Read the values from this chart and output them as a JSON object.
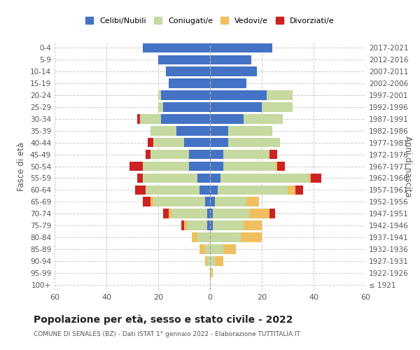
{
  "age_groups": [
    "100+",
    "95-99",
    "90-94",
    "85-89",
    "80-84",
    "75-79",
    "70-74",
    "65-69",
    "60-64",
    "55-59",
    "50-54",
    "45-49",
    "40-44",
    "35-39",
    "30-34",
    "25-29",
    "20-24",
    "15-19",
    "10-14",
    "5-9",
    "0-4"
  ],
  "birth_years": [
    "≤ 1921",
    "1922-1926",
    "1927-1931",
    "1932-1936",
    "1937-1941",
    "1942-1946",
    "1947-1951",
    "1952-1956",
    "1957-1961",
    "1962-1966",
    "1967-1971",
    "1972-1976",
    "1977-1981",
    "1982-1986",
    "1987-1991",
    "1992-1996",
    "1997-2001",
    "2002-2006",
    "2007-2011",
    "2012-2016",
    "2017-2021"
  ],
  "male": {
    "celibi": [
      0,
      0,
      0,
      0,
      0,
      1,
      1,
      2,
      4,
      5,
      8,
      8,
      10,
      13,
      19,
      18,
      19,
      16,
      17,
      20,
      26
    ],
    "coniugati": [
      0,
      0,
      1,
      2,
      5,
      8,
      14,
      20,
      21,
      21,
      18,
      15,
      12,
      10,
      8,
      2,
      1,
      0,
      0,
      0,
      0
    ],
    "vedovi": [
      0,
      0,
      1,
      2,
      2,
      1,
      1,
      1,
      0,
      0,
      0,
      0,
      0,
      0,
      0,
      0,
      0,
      0,
      0,
      0,
      0
    ],
    "divorziati": [
      0,
      0,
      0,
      0,
      0,
      1,
      2,
      3,
      4,
      2,
      5,
      2,
      2,
      0,
      1,
      0,
      0,
      0,
      0,
      0,
      0
    ]
  },
  "female": {
    "nubili": [
      0,
      0,
      0,
      0,
      0,
      1,
      1,
      2,
      3,
      4,
      5,
      5,
      7,
      7,
      13,
      20,
      22,
      14,
      18,
      16,
      24
    ],
    "coniugate": [
      0,
      0,
      2,
      5,
      12,
      12,
      14,
      12,
      27,
      34,
      20,
      18,
      20,
      17,
      15,
      12,
      10,
      0,
      0,
      0,
      0
    ],
    "vedove": [
      0,
      1,
      3,
      5,
      8,
      7,
      8,
      5,
      3,
      1,
      1,
      0,
      0,
      0,
      0,
      0,
      0,
      0,
      0,
      0,
      0
    ],
    "divorziate": [
      0,
      0,
      0,
      0,
      0,
      0,
      2,
      0,
      3,
      4,
      3,
      3,
      0,
      0,
      0,
      0,
      0,
      0,
      0,
      0,
      0
    ]
  },
  "colors": {
    "celibi": "#4472c4",
    "coniugati": "#c5d9a0",
    "vedovi": "#f0c060",
    "divorziati": "#cc2222"
  },
  "xlim": 60,
  "title": "Popolazione per età, sesso e stato civile - 2022",
  "subtitle": "COMUNE DI SENALES (BZ) - Dati ISTAT 1° gennaio 2022 - Elaborazione TUTTITALIA.IT",
  "legend_labels": [
    "Celibi/Nubili",
    "Coniugati/e",
    "Vedovi/e",
    "Divorziati/e"
  ],
  "ylabel_left": "Fasce di età",
  "ylabel_right": "Anni di nascita"
}
